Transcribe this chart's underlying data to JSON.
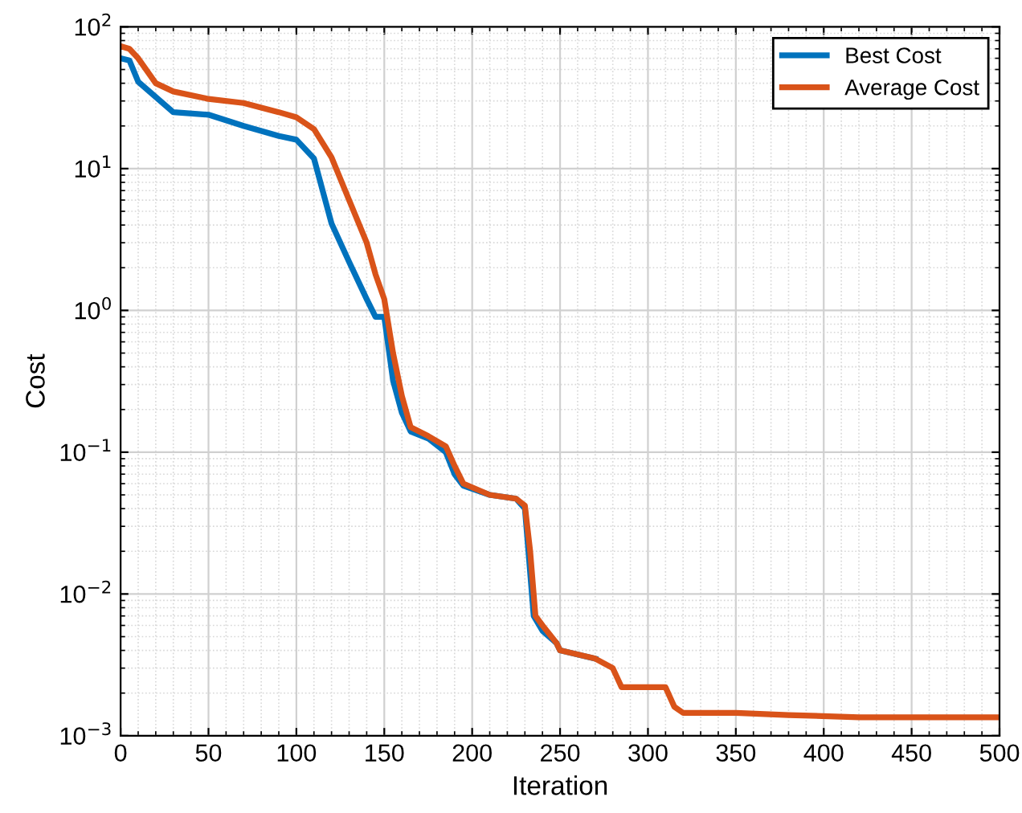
{
  "chart_data": {
    "type": "line",
    "xlabel": "Iteration",
    "ylabel": "Cost",
    "log": "y",
    "grid": true,
    "legend": "top right",
    "marker": "none",
    "line_style": "solid",
    "xlim": [
      0,
      500
    ],
    "xticks": [
      0,
      50,
      100,
      150,
      200,
      250,
      300,
      350,
      400,
      450,
      500
    ],
    "ylim": [
      0.001,
      100
    ],
    "yticks": [
      {
        "value": 0.001,
        "label": "10$^{−3}$"
      },
      {
        "value": 0.01,
        "label": "10$^{−2}$"
      },
      {
        "value": 0.1,
        "label": "10$^{−1}$"
      },
      {
        "value": 1,
        "label": "10$^{0}$"
      },
      {
        "value": 10,
        "label": "10$^{1}$"
      },
      {
        "value": 100,
        "label": "10$^{2}$"
      }
    ],
    "series": [
      {
        "name": "Best Cost",
        "color": "#0072bd",
        "x": [
          0,
          5,
          10,
          20,
          30,
          50,
          70,
          90,
          100,
          110,
          120,
          130,
          140,
          145,
          150,
          155,
          160,
          165,
          175,
          185,
          190,
          195,
          210,
          225,
          230,
          232,
          235,
          240,
          248,
          250,
          270
        ],
        "values": [
          60,
          58,
          41,
          32,
          25,
          24,
          20,
          17,
          16,
          11.8,
          4.1,
          2.2,
          1.2,
          0.9,
          0.9,
          0.32,
          0.19,
          0.14,
          0.125,
          0.1,
          0.07,
          0.058,
          0.05,
          0.047,
          0.04,
          0.02,
          0.007,
          0.0055,
          0.0045,
          0.004,
          0.0035
        ]
      },
      {
        "name": "Average Cost",
        "color": "#d95319",
        "x": [
          0,
          5,
          10,
          20,
          30,
          50,
          70,
          90,
          100,
          110,
          120,
          130,
          140,
          145,
          150,
          155,
          160,
          165,
          175,
          185,
          190,
          195,
          210,
          225,
          230,
          233,
          236,
          240,
          248,
          250,
          270,
          280,
          285,
          310,
          315,
          320,
          350,
          380,
          420,
          500
        ],
        "values": [
          73,
          70,
          60,
          40,
          35,
          31,
          29,
          25,
          23,
          19,
          12,
          6,
          3,
          1.8,
          1.2,
          0.5,
          0.25,
          0.15,
          0.13,
          0.11,
          0.08,
          0.06,
          0.05,
          0.047,
          0.042,
          0.02,
          0.007,
          0.006,
          0.0045,
          0.004,
          0.0035,
          0.003,
          0.0022,
          0.0022,
          0.0016,
          0.00145,
          0.00145,
          0.0014,
          0.00135,
          0.00135
        ]
      }
    ]
  }
}
